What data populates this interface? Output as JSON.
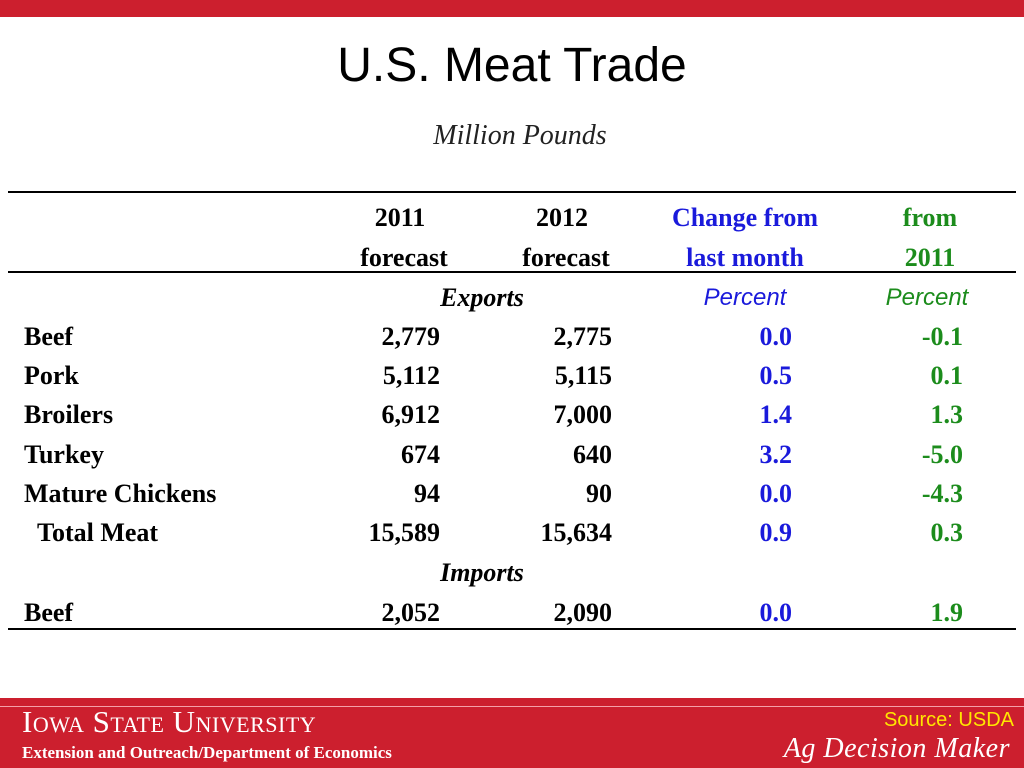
{
  "title": "U.S. Meat Trade",
  "subtitle": "Million Pounds",
  "columns": {
    "col2011_line1": "2011",
    "col2011_line2": "forecast",
    "col2012_line1": "2012",
    "col2012_line2": "forecast",
    "change_line1": "Change from",
    "change_line2": "last month",
    "from2011_line1": "from",
    "from2011_line2": "2011"
  },
  "sections": {
    "exports": "Exports",
    "imports": "Imports",
    "percent_change": "Percent",
    "percent_from": "Percent"
  },
  "export_rows": [
    {
      "label": "Beef",
      "v2011": "2,779",
      "v2012": "2,775",
      "change": "0.0",
      "pct": "-0.1"
    },
    {
      "label": "Pork",
      "v2011": "5,112",
      "v2012": "5,115",
      "change": "0.5",
      "pct": "0.1"
    },
    {
      "label": "Broilers",
      "v2011": "6,912",
      "v2012": "7,000",
      "change": "1.4",
      "pct": "1.3"
    },
    {
      "label": "Turkey",
      "v2011": "674",
      "v2012": "640",
      "change": "3.2",
      "pct": "-5.0"
    },
    {
      "label": "Mature Chickens",
      "v2011": "94",
      "v2012": "90",
      "change": "0.0",
      "pct": "-4.3"
    },
    {
      "label": "Total Meat",
      "v2011": "15,589",
      "v2012": "15,634",
      "change": "0.9",
      "pct": "0.3"
    }
  ],
  "import_rows": [
    {
      "label": "Beef",
      "v2011": "2,052",
      "v2012": "2,090",
      "change": "0.0",
      "pct": "1.9"
    }
  ],
  "footer": {
    "university": "Iowa State University",
    "department": "Extension and Outreach/Department of Economics",
    "source": "Source: USDA",
    "brand": "Ag Decision Maker"
  },
  "colors": {
    "accent_red": "#cc1f2e",
    "change_blue": "#1a1adb",
    "percent_green": "#1c8c1c",
    "source_yellow": "#ffe600"
  }
}
